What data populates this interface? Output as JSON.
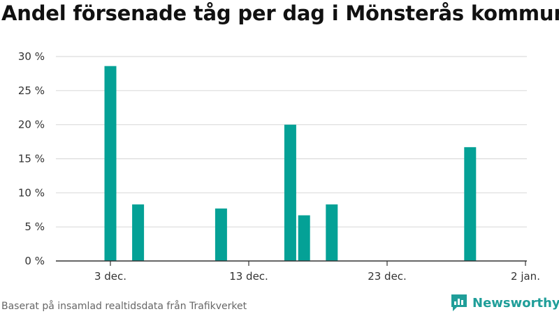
{
  "chart_data": {
    "type": "bar",
    "title": "Andel försenade tåg per dag i Mönsterås kommun",
    "xlabel": "",
    "ylabel": "",
    "x_ticks": [
      "3 dec.",
      "13 dec.",
      "23 dec.",
      "2 jan."
    ],
    "y_ticks": [
      "0 %",
      "5 %",
      "10 %",
      "15 %",
      "20 %",
      "25 %",
      "30 %"
    ],
    "ylim": [
      0,
      30
    ],
    "x_range": [
      "2024-11-29",
      "2025-01-02"
    ],
    "grid": true,
    "bar_color": "#04a196",
    "points": [
      {
        "x": "2024-12-03",
        "y": 28.6
      },
      {
        "x": "2024-12-05",
        "y": 8.3
      },
      {
        "x": "2024-12-11",
        "y": 7.7
      },
      {
        "x": "2024-12-16",
        "y": 20.0
      },
      {
        "x": "2024-12-17",
        "y": 6.7
      },
      {
        "x": "2024-12-19",
        "y": 8.3
      },
      {
        "x": "2024-12-29",
        "y": 16.7
      }
    ]
  },
  "footer": {
    "source": "Baserat på insamlad realtidsdata från Trafikverket",
    "brand": "Newsworthy",
    "brand_icon": "newsworthy-logo-icon"
  }
}
